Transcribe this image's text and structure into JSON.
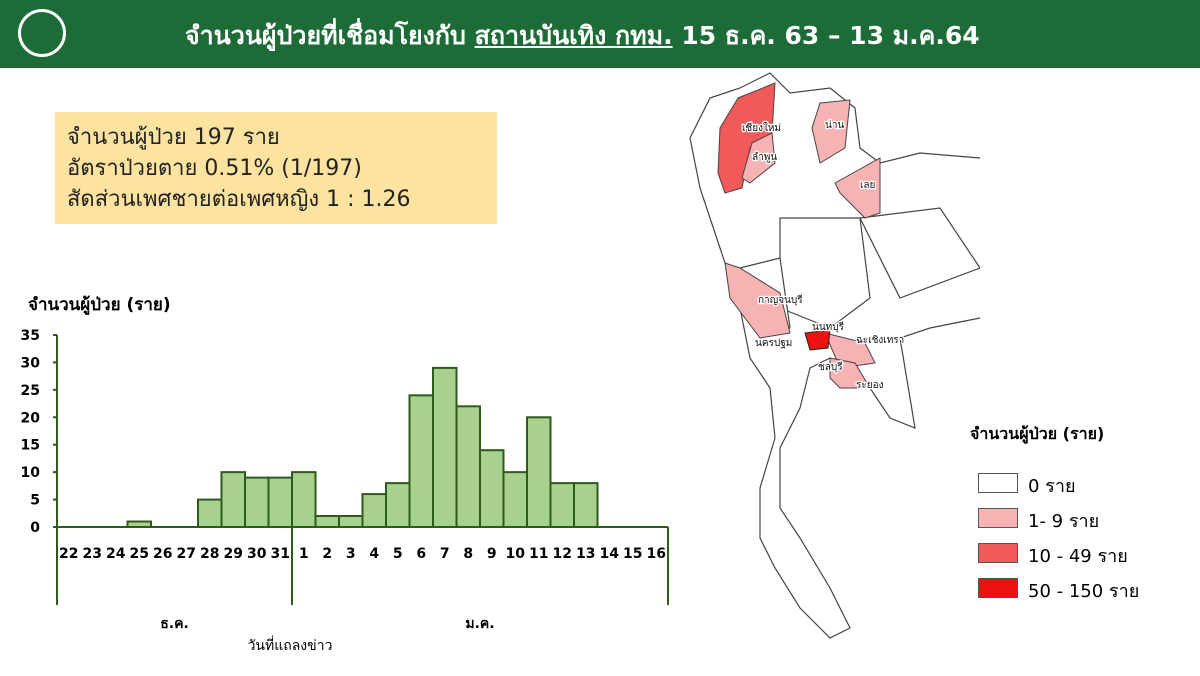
{
  "header": {
    "title_prefix": "จำนวนผู้ป่วยที่เชื่อมโยงกับ ",
    "title_underlined": "สถานบันเทิง กทม.",
    "title_suffix": " 15 ธ.ค. 63 – 13 ม.ค.64",
    "color": "#1d6b36"
  },
  "info": {
    "line1": "จำนวนผู้ป่วย 197 ราย",
    "line2": "อัตราป่วยตาย 0.51% (1/197)",
    "line3": "สัดส่วนเพศชายต่อเพศหญิง 1 : 1.26"
  },
  "chart_data": {
    "type": "bar",
    "ylabel": "จำนวนผู้ป่วย (ราย)",
    "xlabel": "วันที่แถลงข่าว",
    "ylim": [
      0,
      35
    ],
    "yticks": [
      0,
      5,
      10,
      15,
      20,
      25,
      30,
      35
    ],
    "categories": [
      "22",
      "23",
      "24",
      "25",
      "26",
      "27",
      "28",
      "29",
      "30",
      "31",
      "1",
      "2",
      "3",
      "4",
      "5",
      "6",
      "7",
      "8",
      "9",
      "10",
      "11",
      "12",
      "13",
      "14",
      "15",
      "16"
    ],
    "values": [
      0,
      0,
      0,
      1,
      0,
      0,
      5,
      10,
      9,
      9,
      10,
      2,
      2,
      6,
      8,
      24,
      29,
      22,
      14,
      10,
      20,
      8,
      8,
      0,
      0,
      0
    ],
    "month_groups": [
      {
        "label": "ธ.ค.",
        "count": 10
      },
      {
        "label": "ม.ค.",
        "count": 16
      }
    ],
    "bar_color": "#a9d18e",
    "edge_color": "#2e5a1c"
  },
  "map": {
    "provinces": [
      "เชียงใหม่",
      "ลำพูน",
      "น่าน",
      "เลย",
      "กาญจนบุรี",
      "นนทบุรี",
      "นครปฐม",
      "ฉะเชิงเทรา",
      "ชลบุรี",
      "ระยอง"
    ],
    "legend": {
      "title": "จำนวนผู้ป่วย (ราย)",
      "items": [
        {
          "label": "0 ราย",
          "color": "#ffffff"
        },
        {
          "label": "1- 9 ราย",
          "color": "#f7b3b3"
        },
        {
          "label": "10 - 49 ราย",
          "color": "#f05a5a"
        },
        {
          "label": "50 - 150 ราย",
          "color": "#ee1111"
        }
      ]
    }
  }
}
